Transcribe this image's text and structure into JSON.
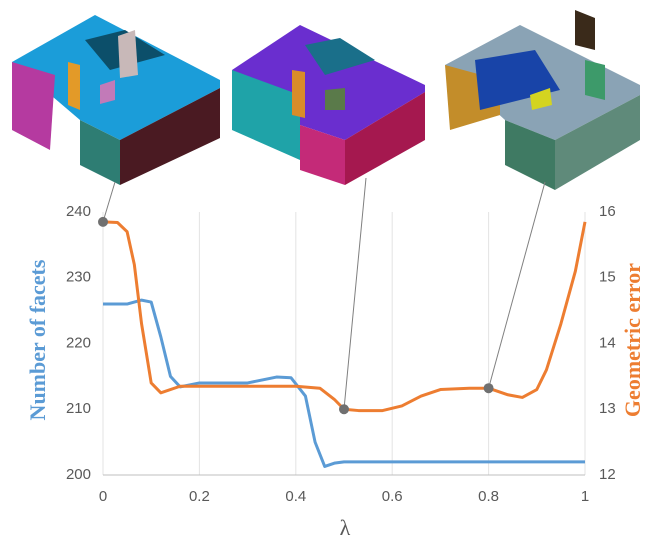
{
  "chart_data": {
    "type": "line",
    "xlabel": "λ",
    "ylabel": "Number of facets",
    "y2label": "Geometric error",
    "xlim": [
      0,
      1
    ],
    "xticks": [
      0,
      0.2,
      0.4,
      0.6,
      0.8,
      1
    ],
    "ylim": [
      200,
      240
    ],
    "yticks": [
      200,
      210,
      220,
      230,
      240
    ],
    "y2lim": [
      12,
      16
    ],
    "y2ticks": [
      12,
      13,
      14,
      15,
      16
    ],
    "grid": true,
    "series": [
      {
        "name": "Number of facets",
        "color": "#5b9bd5",
        "x": [
          0,
          0.05,
          0.08,
          0.1,
          0.12,
          0.14,
          0.16,
          0.2,
          0.3,
          0.36,
          0.39,
          0.42,
          0.44,
          0.46,
          0.48,
          0.5,
          0.6,
          0.8,
          1
        ],
        "values": [
          226,
          226,
          226.6,
          226.3,
          221,
          215,
          213.4,
          214,
          214,
          214.9,
          214.8,
          212,
          205,
          201.3,
          201.8,
          202,
          202,
          202,
          202
        ]
      },
      {
        "name": "Geometric error",
        "color": "#ed7d31",
        "axis": "y2",
        "x": [
          0,
          0.03,
          0.05,
          0.065,
          0.08,
          0.1,
          0.12,
          0.16,
          0.2,
          0.3,
          0.4,
          0.45,
          0.48,
          0.5,
          0.53,
          0.58,
          0.62,
          0.66,
          0.7,
          0.76,
          0.8,
          0.84,
          0.87,
          0.9,
          0.92,
          0.95,
          0.98,
          1
        ],
        "values": [
          15.85,
          15.84,
          15.7,
          15.2,
          14.3,
          13.4,
          13.25,
          13.35,
          13.35,
          13.35,
          13.35,
          13.32,
          13.15,
          13.0,
          12.98,
          12.98,
          13.05,
          13.2,
          13.3,
          13.32,
          13.32,
          13.22,
          13.18,
          13.3,
          13.6,
          14.3,
          15.1,
          15.85
        ]
      }
    ],
    "markers": {
      "color": "#707070",
      "axis": "y2",
      "x": [
        0,
        0.5,
        0.8
      ],
      "values": [
        15.85,
        13.0,
        13.32
      ]
    }
  }
}
